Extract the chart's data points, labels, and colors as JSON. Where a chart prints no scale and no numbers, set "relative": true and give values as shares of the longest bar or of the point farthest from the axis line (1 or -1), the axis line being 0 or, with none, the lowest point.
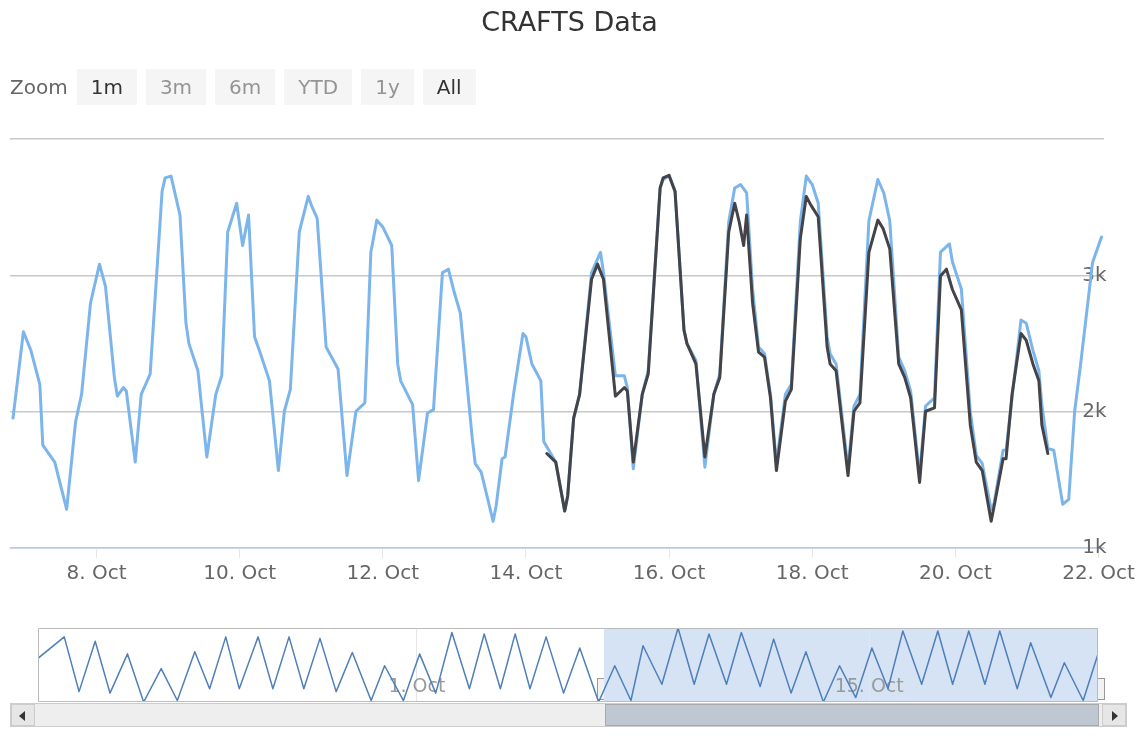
{
  "chart_data": [
    {
      "type": "line",
      "title": "CRAFTS Data",
      "annotations": [
        "Zoom",
        "1m",
        "3m",
        "6m",
        "YTD",
        "1y",
        "All"
      ],
      "xlim": [
        "--10-06T19:00",
        "--10-22T02:00"
      ],
      "xticks": [
        {
          "value": "--10-08",
          "label": "8. Oct"
        },
        {
          "value": "--10-10",
          "label": "10. Oct"
        },
        {
          "value": "--10-12",
          "label": "12. Oct"
        },
        {
          "value": "--10-14",
          "label": "14. Oct"
        },
        {
          "value": "--10-16",
          "label": "16. Oct"
        },
        {
          "value": "--10-18",
          "label": "18. Oct"
        },
        {
          "value": "--10-20",
          "label": "20. Oct"
        },
        {
          "value": "--10-22",
          "label": "22. Oct"
        }
      ],
      "ylim": [
        1000,
        4000
      ],
      "yticks": [
        {
          "value": 1000,
          "label": "1k"
        },
        {
          "value": 2000,
          "label": "2k"
        },
        {
          "value": 3000,
          "label": "3k"
        },
        {
          "value": 4000,
          "label": null
        }
      ],
      "grid": "y",
      "legend": false,
      "marker": "none",
      "line_style": "solid",
      "series": [
        {
          "color": "#7cb5ec",
          "x": [
            "--10-06T20:00",
            "--10-06T23:30",
            "--10-07T02:00",
            "--10-07T05:00",
            "--10-07T06:00",
            "--10-07T10:00",
            "--10-07T14:00",
            "--10-07T17:00",
            "--10-07T19:00",
            "--10-07T22:00",
            "--10-08T01:00",
            "--10-08T03:00",
            "--10-08T06:00",
            "--10-08T07:00",
            "--10-08T09:00",
            "--10-08T10:00",
            "--10-08T13:00",
            "--10-08T15:00",
            "--10-08T18:00",
            "--10-08T22:00",
            "--10-08T23:00",
            "--10-09T01:00",
            "--10-09T04:00",
            "--10-09T06:00",
            "--10-09T07:00",
            "--10-09T10:00",
            "--10-09T13:00",
            "--10-09T16:00",
            "--10-09T18:00",
            "--10-09T20:00",
            "--10-09T23:00",
            "--10-10T01:00",
            "--10-10T03:00",
            "--10-10T05:00",
            "--10-10T07:00",
            "--10-10T10:00",
            "--10-10T13:00",
            "--10-10T15:00",
            "--10-10T17:00",
            "--10-10T20:00",
            "--10-10T23:00",
            "--10-11T00:00",
            "--10-11T02:00",
            "--10-11T05:00",
            "--10-11T09:00",
            "--10-11T12:00",
            "--10-11T15:00",
            "--10-11T18:00",
            "--10-11T20:00",
            "--10-11T22:00",
            "--10-12T00:00",
            "--10-12T03:00",
            "--10-12T05:00",
            "--10-12T06:00",
            "--10-12T10:00",
            "--10-12T12:00",
            "--10-12T15:00",
            "--10-12T17:00",
            "--10-12T20:00",
            "--10-12T22:00",
            "--10-13T00:00",
            "--10-13T02:00",
            "--10-13T06:00",
            "--10-13T07:00",
            "--10-13T09:00",
            "--10-13T13:00",
            "--10-13T14:00",
            "--10-13T16:00",
            "--10-13T17:00",
            "--10-13T20:00",
            "--10-13T23:00",
            "--10-14T00:00",
            "--10-14T02:00",
            "--10-14T05:00",
            "--10-14T06:00",
            "--10-14T10:00",
            "--10-14T13:00",
            "--10-14T14:00",
            "--10-14T16:00",
            "--10-14T18:00",
            "--10-14T22:00",
            "--10-15T01:00",
            "--10-15T02:00",
            "--10-15T06:00",
            "--10-15T09:00",
            "--10-15T10:00",
            "--10-15T12:00",
            "--10-15T15:00",
            "--10-15T17:00",
            "--10-15T21:00",
            "--10-15T22:00",
            "--10-16T00:00",
            "--10-16T02:00",
            "--10-16T05:00",
            "--10-16T06:00",
            "--10-16T09:00",
            "--10-16T12:00",
            "--10-16T15:00",
            "--10-16T17:00",
            "--10-16T20:00",
            "--10-16T22:00",
            "--10-17T00:00",
            "--10-17T02:00",
            "--10-17T04:00",
            "--10-17T06:00",
            "--10-17T08:00",
            "--10-17T10:00",
            "--10-17T12:00",
            "--10-17T15:00",
            "--10-17T17:00",
            "--10-17T20:00",
            "--10-17T22:00",
            "--10-18T00:00",
            "--10-18T02:00",
            "--10-18T05:00",
            "--10-18T06:00",
            "--10-18T08:00",
            "--10-18T12:00",
            "--10-18T14:00",
            "--10-18T16:00",
            "--10-18T19:00",
            "--10-18T22:00",
            "--10-19T00:00",
            "--10-19T02:00",
            "--10-19T05:00",
            "--10-19T07:00",
            "--10-19T09:00",
            "--10-19T12:00",
            "--10-19T14:00",
            "--10-19T17:00",
            "--10-19T19:00",
            "--10-19T22:00",
            "--10-19T23:00",
            "--10-20T02:00",
            "--10-20T05:00",
            "--10-20T07:00",
            "--10-20T09:00",
            "--10-20T12:00",
            "--10-20T13:00",
            "--10-20T16:00",
            "--10-20T17:00",
            "--10-20T19:00",
            "--10-20T22:00",
            "--10-20T23:45",
            "--10-21T02:00",
            "--10-21T04:00",
            "--10-21T05:00",
            "--10-21T07:00",
            "--10-21T09:00",
            "--10-21T12:00",
            "--10-21T14:00",
            "--10-21T16:00",
            "--10-21T18:00",
            "--10-21T22:00",
            "--10-22T01:00"
          ],
          "values": [
            1953,
            2586,
            2450,
            2201,
            1755,
            1630,
            1283,
            1928,
            2127,
            2797,
            3082,
            2921,
            2251,
            2114,
            2177,
            2152,
            1630,
            2127,
            2276,
            3616,
            3715,
            3728,
            3442,
            2648,
            2499,
            2301,
            1668,
            2127,
            2263,
            3318,
            3529,
            3219,
            3442,
            2549,
            2425,
            2226,
            1568,
            2003,
            2164,
            3318,
            3579,
            3517,
            3418,
            2474,
            2313,
            1531,
            2003,
            2065,
            3169,
            3405,
            3355,
            3219,
            2350,
            2226,
            2052,
            1494,
            1990,
            2015,
            3020,
            3045,
            2872,
            2723,
            1804,
            1618,
            1556,
            1196,
            1308,
            1655,
            1668,
            2152,
            2574,
            2549,
            2350,
            2226,
            1779,
            1630,
            1271,
            1382,
            1953,
            2127,
            3020,
            3169,
            3020,
            2263,
            2263,
            2177,
            1581,
            2127,
            2300,
            3641,
            3700,
            3733,
            3616,
            2598,
            2499,
            2375,
            1593,
            2127,
            2276,
            3393,
            3641,
            3666,
            3604,
            2898,
            2475,
            2425,
            2127,
            1618,
            2127,
            2201,
            3393,
            3728,
            3666,
            3530,
            2550,
            2425,
            2350,
            1581,
            2040,
            2127,
            3400,
            3703,
            3604,
            3400,
            2400,
            2301,
            2150,
            1531,
            2040,
            2102,
            3170,
            3231,
            3100,
            2900,
            2000,
            1680,
            1620,
            1283,
            1330,
            1717,
            1717,
            2102,
            2673,
            2649,
            2450,
            2300,
            2050,
            1730,
            1717,
            1320,
            1357,
            2003,
            2350,
            3095,
            3281
          ]
        },
        {
          "color": "#434348",
          "x": [
            "--10-14T07:00",
            "--10-14T10:00",
            "--10-14T13:00",
            "--10-14T14:00",
            "--10-14T16:00",
            "--10-14T18:00",
            "--10-14T22:00",
            "--10-15T00:00",
            "--10-15T02:00",
            "--10-15T06:00",
            "--10-15T09:00",
            "--10-15T10:00",
            "--10-15T12:00",
            "--10-15T15:00",
            "--10-15T17:00",
            "--10-15T21:00",
            "--10-15T22:00",
            "--10-16T00:00",
            "--10-16T02:00",
            "--10-16T05:00",
            "--10-16T06:00",
            "--10-16T09:00",
            "--10-16T12:00",
            "--10-16T15:00",
            "--10-16T17:00",
            "--10-16T20:00",
            "--10-16T22:00",
            "--10-16T23:30",
            "--10-17T01:00",
            "--10-17T02:00",
            "--10-17T04:00",
            "--10-17T06:00",
            "--10-17T08:00",
            "--10-17T10:00",
            "--10-17T12:00",
            "--10-17T15:00",
            "--10-17T17:00",
            "--10-17T20:00",
            "--10-17T22:00",
            "--10-17T23:30",
            "--10-18T02:00",
            "--10-18T05:00",
            "--10-18T06:00",
            "--10-18T08:00",
            "--10-18T12:00",
            "--10-18T14:00",
            "--10-18T16:00",
            "--10-18T19:00",
            "--10-18T22:00",
            "--10-18T23:45",
            "--10-19T02:00",
            "--10-19T05:00",
            "--10-19T07:00",
            "--10-19T09:00",
            "--10-19T12:00",
            "--10-19T14:00",
            "--10-19T17:00",
            "--10-19T19:00",
            "--10-19T21:00",
            "--10-19T23:00",
            "--10-20T02:00",
            "--10-20T05:00",
            "--10-20T07:00",
            "--10-20T09:00",
            "--10-20T12:00",
            "--10-20T13:00",
            "--10-20T16:00",
            "--10-20T17:00",
            "--10-20T19:00",
            "--10-20T22:00",
            "--10-20T23:45",
            "--10-21T02:00",
            "--10-21T04:00",
            "--10-21T05:00",
            "--10-21T07:00"
          ],
          "values": [
            1693,
            1630,
            1271,
            1382,
            1953,
            2127,
            2971,
            3082,
            2971,
            2114,
            2177,
            2152,
            1630,
            2127,
            2276,
            3641,
            3715,
            3733,
            3616,
            2598,
            2499,
            2350,
            1668,
            2127,
            2251,
            3318,
            3529,
            3393,
            3219,
            3442,
            2797,
            2437,
            2400,
            2102,
            1568,
            2077,
            2164,
            3269,
            3579,
            3517,
            3430,
            2474,
            2350,
            2301,
            1531,
            2003,
            2065,
            3169,
            3405,
            3343,
            3194,
            2350,
            2251,
            2102,
            1481,
            2003,
            2028,
            2996,
            3045,
            2896,
            2747,
            1903,
            1630,
            1568,
            1196,
            1308,
            1655,
            1655,
            2127,
            2574,
            2524,
            2350,
            2226,
            1903,
            1693
          ]
        }
      ]
    },
    {
      "type": "line",
      "relative": true,
      "tick_labels": "x",
      "grid": "x",
      "legend": false,
      "marker": "none",
      "xlim": [
        "--09-19T06:30",
        "--10-22T02:00"
      ],
      "xticks": [
        {
          "value": "--10-01",
          "label": "1. Oct"
        },
        {
          "value": "--10-15",
          "label": "15. Oct"
        }
      ],
      "bands": [
        {
          "axis": "x",
          "from": "--10-06T19:00",
          "to": "--10-22T02:00",
          "color": "#d5e3f5"
        }
      ],
      "series": [
        {
          "color": "#4f7fb8",
          "x": [
            "--09-19T06:30",
            "--09-20T02:00",
            "--09-20T13:00",
            "--09-21T01:00",
            "--09-21T12:00",
            "--09-22T01:00",
            "--09-22T13:00",
            "--09-23T02:00",
            "--09-23T14:00",
            "--09-24T03:00",
            "--09-24T14:00",
            "--09-25T02:00",
            "--09-25T12:00",
            "--09-26T02:00",
            "--09-26T13:00",
            "--09-27T01:00",
            "--09-27T12:00",
            "--09-28T00:00",
            "--09-28T12:00",
            "--09-29T00:00",
            "--09-29T14:00",
            "--09-30T00:00",
            "--09-30T14:00",
            "--10-01T02:00",
            "--10-01T14:00",
            "--10-02T02:00",
            "--10-02T15:00",
            "--10-03T02:00",
            "--10-03T14:00",
            "--10-04T01:00",
            "--10-04T12:00",
            "--10-05T00:00",
            "--10-05T13:00",
            "--10-06T01:00",
            "--10-06T15:00",
            "--10-07T03:00",
            "--10-07T15:00",
            "--10-08T00:00",
            "--10-08T14:00",
            "--10-09T02:00",
            "--10-09T14:00",
            "--10-10T01:00",
            "--10-10T14:00",
            "--10-11T01:00",
            "--10-11T15:00",
            "--10-12T01:00",
            "--10-12T14:00",
            "--10-13T01:00",
            "--10-13T14:00",
            "--10-14T02:00",
            "--10-14T14:00",
            "--10-15T02:00",
            "--10-15T14:00",
            "--10-16T01:00",
            "--10-16T15:00",
            "--10-17T03:00",
            "--10-17T14:00",
            "--10-18T02:00",
            "--10-18T14:00",
            "--10-19T01:00",
            "--10-19T14:00",
            "--10-20T00:00",
            "--10-20T15:00",
            "--10-21T01:00",
            "--10-21T15:00",
            "--10-22T02:00"
          ],
          "values": [
            0.59,
            0.88,
            0.14,
            0.82,
            0.12,
            0.65,
            0,
            0.45,
            0.02,
            0.68,
            0.18,
            0.88,
            0.18,
            0.88,
            0.18,
            0.88,
            0.18,
            0.86,
            0.14,
            0.67,
            0.02,
            0.49,
            0.02,
            0.65,
            0.12,
            0.94,
            0.18,
            0.92,
            0.18,
            0.92,
            0.18,
            0.88,
            0.12,
            0.73,
            0,
            0.49,
            0.02,
            0.76,
            0.24,
            1,
            0.24,
            0.92,
            0.24,
            0.94,
            0.21,
            0.85,
            0.12,
            0.68,
            0,
            0.49,
            0.06,
            0.73,
            0.18,
            0.96,
            0.24,
            0.96,
            0.24,
            0.96,
            0.24,
            0.96,
            0.18,
            0.8,
            0.06,
            0.53,
            0.02,
            0.65
          ]
        }
      ]
    }
  ]
}
